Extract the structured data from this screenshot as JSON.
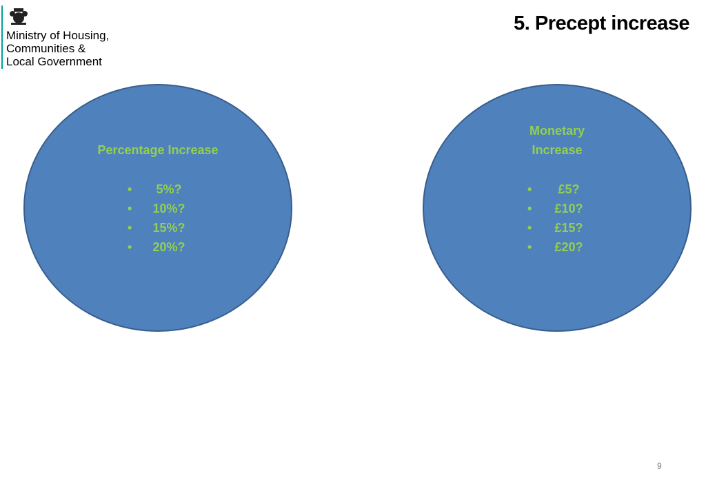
{
  "header": {
    "organisation": [
      "Ministry of Housing,",
      "Communities &",
      "Local Government"
    ],
    "title": "5. Precept increase"
  },
  "circles": [
    {
      "title": "Percentage Increase",
      "items": [
        "5%?",
        "10%?",
        "15%?",
        "20%?"
      ]
    },
    {
      "title": "Monetary Increase",
      "items": [
        "£5?",
        "£10?",
        "£15?",
        "£20?"
      ]
    }
  ],
  "footer": {
    "page_number": "9"
  }
}
